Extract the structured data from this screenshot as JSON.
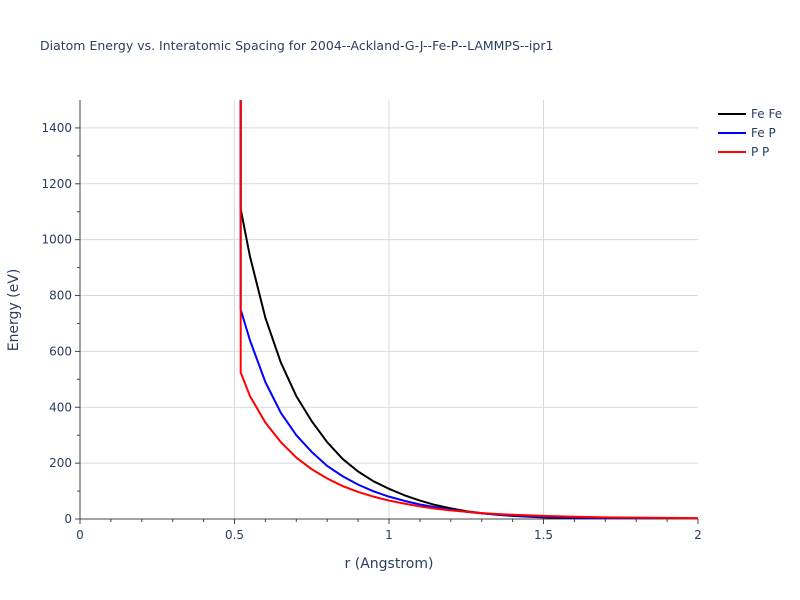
{
  "chart_data": {
    "type": "line",
    "title": "Diatom Energy vs. Interatomic Spacing for 2004--Ackland-G-J--Fe-P--LAMMPS--ipr1",
    "xlabel": "r (Angstrom)",
    "ylabel": "Energy (eV)",
    "xlim": [
      0,
      2
    ],
    "ylim": [
      0,
      1500
    ],
    "x_ticks": [
      "0",
      "0.5",
      "1",
      "1.5",
      "2"
    ],
    "y_ticks": [
      "0",
      "200",
      "400",
      "600",
      "800",
      "1000",
      "1200",
      "1400"
    ],
    "grid": true,
    "legend_position": "top-right",
    "series": [
      {
        "name": "Fe Fe",
        "color": "#000000",
        "points": [
          [
            0.52,
            1500
          ],
          [
            0.52,
            1110
          ],
          [
            0.55,
            940
          ],
          [
            0.6,
            720
          ],
          [
            0.65,
            560
          ],
          [
            0.7,
            440
          ],
          [
            0.75,
            350
          ],
          [
            0.8,
            275
          ],
          [
            0.85,
            215
          ],
          [
            0.9,
            170
          ],
          [
            0.95,
            135
          ],
          [
            1.0,
            108
          ],
          [
            1.05,
            85
          ],
          [
            1.1,
            66
          ],
          [
            1.15,
            50
          ],
          [
            1.2,
            38
          ],
          [
            1.25,
            28
          ],
          [
            1.3,
            21
          ],
          [
            1.35,
            15
          ],
          [
            1.4,
            11
          ],
          [
            1.5,
            6
          ],
          [
            1.6,
            3
          ],
          [
            1.7,
            2
          ],
          [
            1.8,
            1
          ],
          [
            1.9,
            0.5
          ],
          [
            2.0,
            0.3
          ]
        ]
      },
      {
        "name": "Fe P",
        "color": "#0000ff",
        "points": [
          [
            0.52,
            1500
          ],
          [
            0.52,
            750
          ],
          [
            0.55,
            640
          ],
          [
            0.6,
            490
          ],
          [
            0.65,
            380
          ],
          [
            0.7,
            300
          ],
          [
            0.75,
            240
          ],
          [
            0.8,
            190
          ],
          [
            0.85,
            153
          ],
          [
            0.9,
            123
          ],
          [
            0.95,
            99
          ],
          [
            1.0,
            80
          ],
          [
            1.05,
            65
          ],
          [
            1.1,
            52
          ],
          [
            1.15,
            42
          ],
          [
            1.2,
            33
          ],
          [
            1.25,
            26
          ],
          [
            1.3,
            20
          ],
          [
            1.35,
            16
          ],
          [
            1.4,
            12
          ],
          [
            1.5,
            8
          ],
          [
            1.6,
            5
          ],
          [
            1.7,
            3
          ],
          [
            1.8,
            2
          ],
          [
            1.9,
            1.5
          ],
          [
            2.0,
            1
          ]
        ]
      },
      {
        "name": "P P",
        "color": "#ff0000",
        "points": [
          [
            0.52,
            1500
          ],
          [
            0.52,
            525
          ],
          [
            0.55,
            440
          ],
          [
            0.6,
            345
          ],
          [
            0.65,
            275
          ],
          [
            0.7,
            220
          ],
          [
            0.75,
            178
          ],
          [
            0.8,
            145
          ],
          [
            0.85,
            118
          ],
          [
            0.9,
            97
          ],
          [
            0.95,
            80
          ],
          [
            1.0,
            66
          ],
          [
            1.05,
            55
          ],
          [
            1.1,
            45
          ],
          [
            1.15,
            37
          ],
          [
            1.2,
            31
          ],
          [
            1.25,
            26
          ],
          [
            1.3,
            21
          ],
          [
            1.35,
            18
          ],
          [
            1.4,
            15
          ],
          [
            1.5,
            11
          ],
          [
            1.6,
            8
          ],
          [
            1.7,
            6
          ],
          [
            1.8,
            5
          ],
          [
            1.9,
            4
          ],
          [
            2.0,
            3
          ]
        ]
      }
    ]
  }
}
